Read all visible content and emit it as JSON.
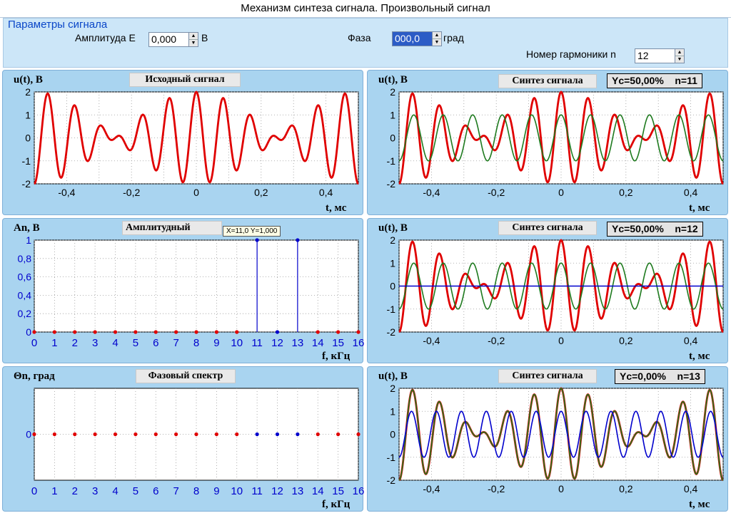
{
  "window": {
    "title": "Механизм синтеза сигнала. Произвольный сигнал"
  },
  "params": {
    "legend": "Параметры сигнала",
    "amplitude_label": "Амплитуда  E",
    "amplitude_value": "0,000",
    "amplitude_unit": "В",
    "phase_label": "Фаза",
    "phase_value": "000,0",
    "phase_unit": "град",
    "harmonic_label": "Номер гармоники  n",
    "harmonic_value": "12"
  },
  "panels": {
    "source": {
      "title": "Исходный сигнал",
      "ylabel": "u(t), В",
      "xlabel": "t, мс"
    },
    "amp": {
      "title": "Амплитудный спектр",
      "ylabel": "An, В",
      "xlabel": "f, кГц",
      "tooltip": "X=11,0  Y=1,000"
    },
    "phase": {
      "title": "Фазовый спектр",
      "ylabel": "Θn, град",
      "xlabel": "f, кГц"
    },
    "syn1": {
      "title": "Синтез сигнала",
      "badge": "Yc=50,00%    n=11",
      "ylabel": "u(t), В",
      "xlabel": "t, мс"
    },
    "syn2": {
      "title": "Синтез сигнала",
      "badge": "Yc=50,00%    n=12",
      "ylabel": "u(t), В",
      "xlabel": "t, мс"
    },
    "syn3": {
      "title": "Синтез сигнала",
      "badge": "Yc=0,00%    n=13",
      "ylabel": "u(t), В",
      "xlabel": "t, мс"
    }
  },
  "colors": {
    "signal": "#e00000",
    "harmonic_green": "#1e7a1e",
    "harmonic_blue": "#0000cc",
    "axis_blue": "#0000aa",
    "tick_blue": "#0000cc",
    "panel_bg": "#a9d4f0"
  },
  "chart_data": [
    {
      "type": "line",
      "id": "source",
      "title": "Исходный сигнал",
      "ylabel": "u(t), В",
      "xlabel": "t, мс",
      "xlim": [
        -0.5,
        0.5
      ],
      "ylim": [
        -2,
        2
      ],
      "x_ticks": [
        "-0,4",
        "-0,2",
        "0",
        "0,2",
        "0,4"
      ],
      "y_ticks": [
        "2",
        "1",
        "0",
        "-1",
        "-2"
      ],
      "series": [
        {
          "formula": "cos(2π·11·t) + cos(2π·13·t)",
          "harmonics": [
            11,
            13
          ],
          "color": "#e00000"
        }
      ],
      "grid": true
    },
    {
      "type": "line",
      "id": "syn1",
      "title": "Синтез сигнала",
      "annotation": "Yc=50,00%    n=11",
      "ylabel": "u(t), В",
      "xlabel": "t, мс",
      "xlim": [
        -0.5,
        0.5
      ],
      "ylim": [
        -2,
        2
      ],
      "x_ticks": [
        "-0,4",
        "-0,2",
        "0",
        "0,2",
        "0,4"
      ],
      "y_ticks": [
        "2",
        "1",
        "0",
        "-1",
        "-2"
      ],
      "series": [
        {
          "harmonics": [
            11,
            13
          ],
          "color": "#e00000"
        },
        {
          "harmonics": [
            11
          ],
          "color": "#1e7a1e"
        }
      ],
      "grid": true
    },
    {
      "type": "line",
      "id": "syn2",
      "title": "Синтез сигнала",
      "annotation": "Yc=50,00%    n=12",
      "ylabel": "u(t), В",
      "xlabel": "t, мс",
      "xlim": [
        -0.5,
        0.5
      ],
      "ylim": [
        -2,
        2
      ],
      "x_ticks": [
        "-0,4",
        "-0,2",
        "0",
        "0,2",
        "0,4"
      ],
      "y_ticks": [
        "2",
        "1",
        "0",
        "-1",
        "-2"
      ],
      "series": [
        {
          "harmonics": [
            11,
            13
          ],
          "color": "#e00000"
        },
        {
          "harmonics": [
            11
          ],
          "color": "#1e7a1e"
        },
        {
          "harmonics": [],
          "color": "#0000cc"
        }
      ],
      "grid": true
    },
    {
      "type": "line",
      "id": "syn3",
      "title": "Синтез сигнала",
      "annotation": "Yc=0,00%    n=13",
      "ylabel": "u(t), В",
      "xlabel": "t, мс",
      "xlim": [
        -0.5,
        0.5
      ],
      "ylim": [
        -2,
        2
      ],
      "x_ticks": [
        "-0,4",
        "-0,2",
        "0",
        "0,2",
        "0,4"
      ],
      "y_ticks": [
        "2",
        "1",
        "0",
        "-1",
        "-2"
      ],
      "series": [
        {
          "harmonics": [
            11,
            13
          ],
          "color": "#e00000"
        },
        {
          "harmonics": [
            11,
            13
          ],
          "color": "#1e7a1e"
        },
        {
          "harmonics": [
            13
          ],
          "color": "#0000cc"
        }
      ],
      "grid": true
    },
    {
      "type": "stem",
      "id": "amp",
      "title": "Амплитудный спектр",
      "ylabel": "An, В",
      "xlabel": "f, кГц",
      "xlim": [
        0,
        16
      ],
      "ylim": [
        0,
        1
      ],
      "x": [
        0,
        1,
        2,
        3,
        4,
        5,
        6,
        7,
        8,
        9,
        10,
        11,
        12,
        13,
        14,
        15,
        16
      ],
      "values": [
        0,
        0,
        0,
        0,
        0,
        0,
        0,
        0,
        0,
        0,
        0,
        1,
        0,
        1,
        0,
        0,
        0
      ],
      "y_ticks": [
        "1",
        "0,8",
        "0,6",
        "0,4",
        "0,2",
        "0"
      ],
      "point_colors": [
        "r",
        "r",
        "r",
        "r",
        "r",
        "r",
        "r",
        "r",
        "r",
        "r",
        "r",
        "b",
        "b",
        "b",
        "r",
        "r",
        "r"
      ],
      "grid": true
    },
    {
      "type": "scatter",
      "id": "phase",
      "title": "Фазовый спектр",
      "ylabel": "Θn, град",
      "xlabel": "f, кГц",
      "xlim": [
        0,
        16
      ],
      "x": [
        0,
        1,
        2,
        3,
        4,
        5,
        6,
        7,
        8,
        9,
        10,
        11,
        12,
        13,
        14,
        15,
        16
      ],
      "values": [
        0,
        0,
        0,
        0,
        0,
        0,
        0,
        0,
        0,
        0,
        0,
        0,
        0,
        0,
        0,
        0,
        0
      ],
      "y_ticks": [
        "0"
      ],
      "point_colors": [
        "r",
        "r",
        "r",
        "r",
        "r",
        "r",
        "r",
        "r",
        "r",
        "r",
        "r",
        "b",
        "b",
        "b",
        "r",
        "r",
        "r"
      ],
      "grid": true
    }
  ]
}
